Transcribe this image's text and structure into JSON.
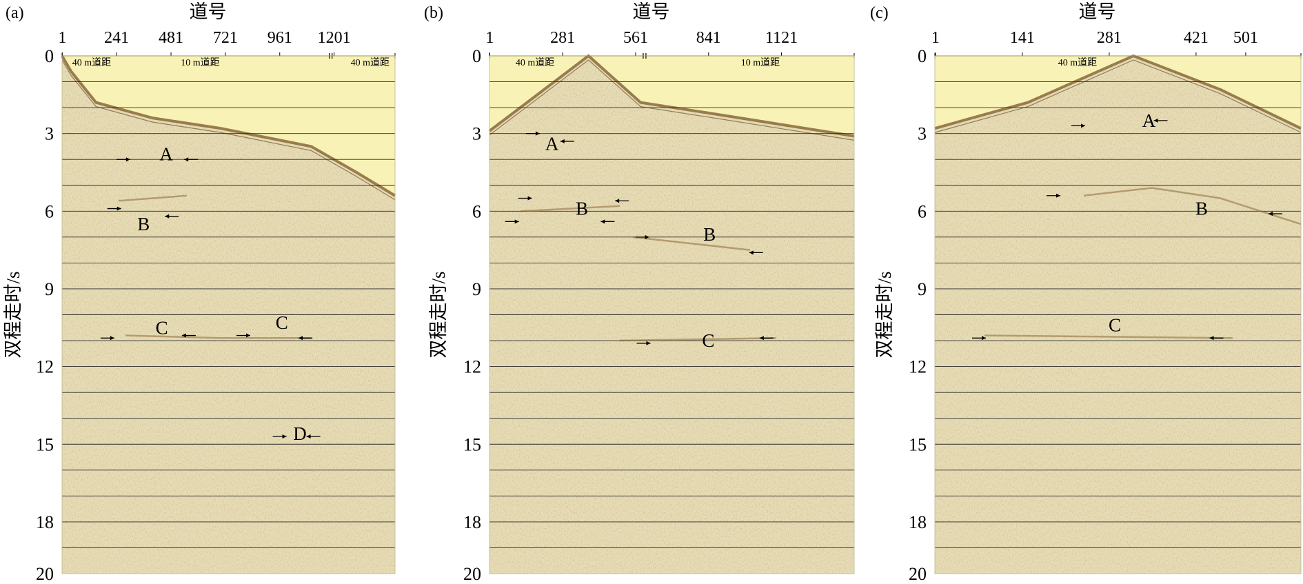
{
  "figure": {
    "colors": {
      "blank_zone": "#f8f2b6",
      "section_background": "#e7dcb4",
      "grid_line": "#2b2b2b",
      "reflection": "#8a6a3a",
      "text": "#000000"
    },
    "panels": [
      {
        "id": "a",
        "panel_label": "(a)",
        "x_title": "道号",
        "y_title": "双程走时/s",
        "trace_ticks": [
          "1",
          "241",
          "481",
          "721",
          "961",
          "1201"
        ],
        "trace_max": 1470,
        "time_ticks": [
          "0",
          "3",
          "6",
          "9",
          "12",
          "15",
          "18",
          "20"
        ],
        "time_max": 20,
        "spacing_labels": [
          {
            "text": "40 m道距",
            "trace": 45,
            "anchor": "start"
          },
          {
            "text": "10 m道距",
            "trace": 610,
            "anchor": "middle"
          },
          {
            "text": "40 m道距",
            "trace": 1360,
            "anchor": "middle"
          }
        ],
        "spacing_marks": [
          1180
        ],
        "first_break_curve": [
          [
            0,
            0.0
          ],
          [
            40,
            0.6
          ],
          [
            150,
            1.8
          ],
          [
            400,
            2.4
          ],
          [
            700,
            2.8
          ],
          [
            1100,
            3.5
          ],
          [
            1300,
            4.5
          ],
          [
            1470,
            5.4
          ]
        ],
        "annotations": [
          {
            "letter": "A",
            "trace": 460,
            "time": 3.8
          },
          {
            "letter": "B",
            "trace": 360,
            "time": 6.5
          },
          {
            "letter": "C",
            "trace": 440,
            "time": 10.5
          },
          {
            "letter": "C",
            "trace": 970,
            "time": 10.3
          },
          {
            "letter": "D",
            "trace": 1050,
            "time": 14.6
          }
        ],
        "arrows": [
          {
            "trace": 240,
            "time": 4.0,
            "dir": "right"
          },
          {
            "trace": 600,
            "time": 4.0,
            "dir": "left"
          },
          {
            "trace": 200,
            "time": 5.9,
            "dir": "right"
          },
          {
            "trace": 515,
            "time": 6.2,
            "dir": "left"
          },
          {
            "trace": 170,
            "time": 10.9,
            "dir": "right"
          },
          {
            "trace": 590,
            "time": 10.8,
            "dir": "left"
          },
          {
            "trace": 770,
            "time": 10.8,
            "dir": "right"
          },
          {
            "trace": 1105,
            "time": 10.9,
            "dir": "left"
          },
          {
            "trace": 930,
            "time": 14.7,
            "dir": "right"
          },
          {
            "trace": 1140,
            "time": 14.7,
            "dir": "left"
          }
        ],
        "reflectors": [
          [
            [
              250,
              5.6
            ],
            [
              550,
              5.4
            ]
          ],
          [
            [
              280,
              10.8
            ],
            [
              700,
              10.9
            ],
            [
              1100,
              10.9
            ]
          ]
        ]
      },
      {
        "id": "b",
        "panel_label": "(b)",
        "x_title": "道号",
        "y_title": "双程走时/s",
        "trace_ticks": [
          "1",
          "281",
          "561",
          "841",
          "1121"
        ],
        "trace_max": 1400,
        "time_ticks": [
          "0",
          "3",
          "6",
          "9",
          "12",
          "15",
          "18",
          "20"
        ],
        "time_max": 20,
        "spacing_labels": [
          {
            "text": "40 m道距",
            "trace": 175,
            "anchor": "middle"
          },
          {
            "text": "10 m道距",
            "trace": 1040,
            "anchor": "middle"
          }
        ],
        "spacing_marks": [
          590
        ],
        "first_break_curve": [
          [
            0,
            2.9
          ],
          [
            380,
            0.0
          ],
          [
            580,
            1.8
          ],
          [
            900,
            2.3
          ],
          [
            1400,
            3.1
          ]
        ],
        "annotations": [
          {
            "letter": "A",
            "trace": 240,
            "time": 3.4
          },
          {
            "letter": "B",
            "trace": 355,
            "time": 5.9
          },
          {
            "letter": "B",
            "trace": 845,
            "time": 6.9
          },
          {
            "letter": "C",
            "trace": 840,
            "time": 11.0
          }
        ],
        "arrows": [
          {
            "trace": 140,
            "time": 3.0,
            "dir": "right"
          },
          {
            "trace": 325,
            "time": 3.3,
            "dir": "left"
          },
          {
            "trace": 110,
            "time": 5.5,
            "dir": "right"
          },
          {
            "trace": 535,
            "time": 5.6,
            "dir": "left"
          },
          {
            "trace": 60,
            "time": 6.4,
            "dir": "right"
          },
          {
            "trace": 480,
            "time": 6.4,
            "dir": "left"
          },
          {
            "trace": 560,
            "time": 7.0,
            "dir": "right"
          },
          {
            "trace": 1050,
            "time": 7.6,
            "dir": "left"
          },
          {
            "trace": 565,
            "time": 11.1,
            "dir": "right"
          },
          {
            "trace": 1090,
            "time": 10.9,
            "dir": "left"
          }
        ],
        "reflectors": [
          [
            [
              120,
              6.0
            ],
            [
              500,
              5.8
            ]
          ],
          [
            [
              550,
              7.0
            ],
            [
              1000,
              7.5
            ]
          ],
          [
            [
              500,
              11.0
            ],
            [
              1100,
              10.9
            ]
          ]
        ]
      },
      {
        "id": "c",
        "panel_label": "(c)",
        "x_title": "道号",
        "y_title": "双程走时/s",
        "trace_ticks": [
          "1",
          "141",
          "281",
          "421",
          "501"
        ],
        "trace_max": 590,
        "time_ticks": [
          "0",
          "3",
          "6",
          "9",
          "12",
          "15",
          "18",
          "20"
        ],
        "time_max": 20,
        "spacing_labels": [
          {
            "text": "40 m道距",
            "trace": 230,
            "anchor": "middle"
          }
        ],
        "spacing_marks": [],
        "first_break_curve": [
          [
            0,
            2.8
          ],
          [
            150,
            1.8
          ],
          [
            320,
            0.0
          ],
          [
            460,
            1.3
          ],
          [
            590,
            2.8
          ]
        ],
        "annotations": [
          {
            "letter": "A",
            "trace": 345,
            "time": 2.5
          },
          {
            "letter": "B",
            "trace": 430,
            "time": 5.9
          },
          {
            "letter": "C",
            "trace": 290,
            "time": 10.4
          }
        ],
        "arrows": [
          {
            "trace": 220,
            "time": 2.7,
            "dir": "right"
          },
          {
            "trace": 375,
            "time": 2.5,
            "dir": "left"
          },
          {
            "trace": 180,
            "time": 5.4,
            "dir": "right"
          },
          {
            "trace": 560,
            "time": 6.1,
            "dir": "left"
          },
          {
            "trace": 60,
            "time": 10.9,
            "dir": "right"
          },
          {
            "trace": 465,
            "time": 10.9,
            "dir": "left"
          }
        ],
        "reflectors": [
          [
            [
              240,
              5.4
            ],
            [
              350,
              5.1
            ],
            [
              460,
              5.5
            ],
            [
              590,
              6.5
            ]
          ],
          [
            [
              80,
              10.8
            ],
            [
              480,
              10.9
            ]
          ]
        ]
      }
    ]
  }
}
